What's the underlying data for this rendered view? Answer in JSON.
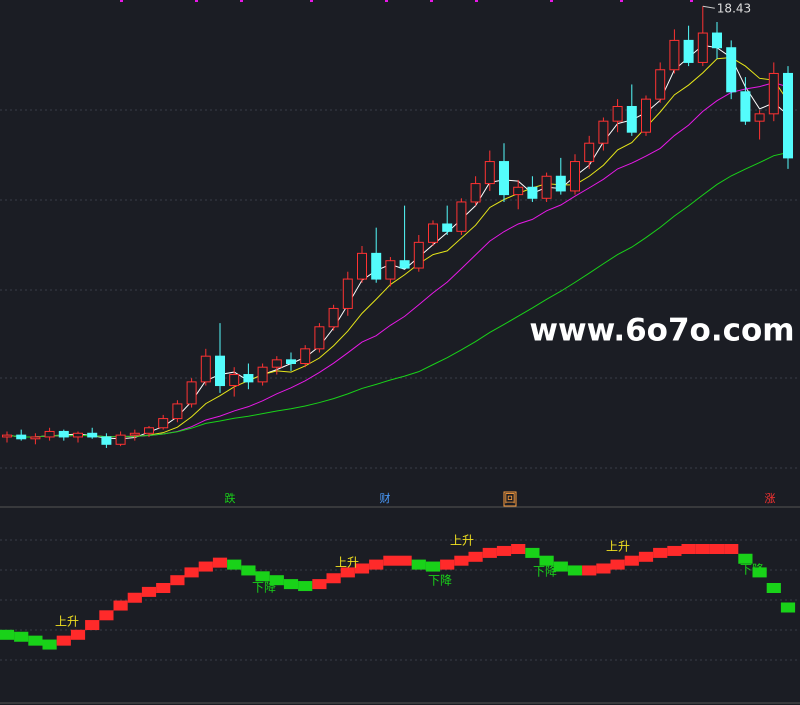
{
  "chart_data": {
    "type": "candlestick",
    "ylim": [
      5.8,
      18.6
    ],
    "up_color": "#ff3232",
    "down_color": "#54fcfc",
    "annotation": "18.43",
    "candles": [
      [
        6.7,
        6.85,
        6.55,
        6.75
      ],
      [
        6.75,
        6.9,
        6.6,
        6.65
      ],
      [
        6.65,
        6.8,
        6.5,
        6.7
      ],
      [
        6.7,
        6.95,
        6.6,
        6.85
      ],
      [
        6.85,
        6.9,
        6.6,
        6.7
      ],
      [
        6.7,
        6.85,
        6.55,
        6.8
      ],
      [
        6.8,
        6.95,
        6.65,
        6.7
      ],
      [
        6.7,
        6.8,
        6.4,
        6.5
      ],
      [
        6.5,
        6.85,
        6.45,
        6.75
      ],
      [
        6.75,
        6.9,
        6.6,
        6.8
      ],
      [
        6.8,
        7.0,
        6.7,
        6.95
      ],
      [
        6.95,
        7.3,
        6.9,
        7.2
      ],
      [
        7.2,
        7.7,
        7.1,
        7.6
      ],
      [
        7.6,
        8.3,
        7.5,
        8.2
      ],
      [
        8.2,
        9.1,
        8.1,
        8.9
      ],
      [
        8.9,
        9.8,
        7.9,
        8.1
      ],
      [
        8.1,
        8.6,
        7.8,
        8.4
      ],
      [
        8.4,
        8.7,
        8.0,
        8.2
      ],
      [
        8.2,
        8.7,
        8.1,
        8.6
      ],
      [
        8.6,
        8.9,
        8.4,
        8.8
      ],
      [
        8.8,
        9.0,
        8.5,
        8.7
      ],
      [
        8.7,
        9.2,
        8.6,
        9.1
      ],
      [
        9.1,
        9.8,
        9.0,
        9.7
      ],
      [
        9.7,
        10.3,
        9.6,
        10.2
      ],
      [
        10.2,
        11.2,
        10.0,
        11.0
      ],
      [
        11.0,
        11.9,
        10.9,
        11.7
      ],
      [
        11.7,
        12.4,
        10.9,
        11.0
      ],
      [
        11.0,
        11.6,
        10.8,
        11.5
      ],
      [
        11.5,
        13.0,
        11.3,
        11.3
      ],
      [
        11.3,
        12.2,
        11.2,
        12.0
      ],
      [
        12.0,
        12.6,
        11.9,
        12.5
      ],
      [
        12.5,
        13.0,
        12.2,
        12.3
      ],
      [
        12.3,
        13.2,
        12.2,
        13.1
      ],
      [
        13.1,
        13.8,
        13.0,
        13.6
      ],
      [
        13.6,
        14.5,
        13.4,
        14.2
      ],
      [
        14.2,
        14.7,
        13.1,
        13.3
      ],
      [
        13.3,
        13.7,
        12.9,
        13.5
      ],
      [
        13.5,
        13.8,
        13.1,
        13.2
      ],
      [
        13.2,
        13.9,
        13.1,
        13.8
      ],
      [
        13.8,
        14.3,
        13.3,
        13.4
      ],
      [
        13.4,
        14.4,
        13.3,
        14.2
      ],
      [
        14.2,
        14.9,
        14.0,
        14.7
      ],
      [
        14.7,
        15.4,
        14.5,
        15.3
      ],
      [
        15.3,
        15.9,
        15.0,
        15.7
      ],
      [
        15.7,
        16.3,
        14.9,
        15.0
      ],
      [
        15.0,
        16.0,
        14.9,
        15.9
      ],
      [
        15.9,
        16.9,
        15.8,
        16.7
      ],
      [
        16.7,
        17.8,
        16.6,
        17.5
      ],
      [
        17.5,
        17.9,
        16.8,
        16.9
      ],
      [
        16.9,
        18.43,
        16.8,
        17.7
      ],
      [
        17.7,
        18.0,
        17.0,
        17.3
      ],
      [
        17.3,
        17.5,
        15.9,
        16.1
      ],
      [
        16.1,
        16.5,
        15.2,
        15.3
      ],
      [
        15.3,
        15.6,
        14.8,
        15.5
      ],
      [
        15.5,
        16.9,
        15.3,
        16.6
      ],
      [
        16.6,
        16.8,
        14.0,
        14.3
      ]
    ],
    "ma_colors": [
      "#ffffff",
      "#e6e619",
      "#e619e6",
      "#19d219"
    ],
    "indicator": {
      "ylim": [
        0,
        100
      ],
      "rise_color": "#ff2a2a",
      "fall_color": "#19d219",
      "values": [
        36,
        35,
        33,
        31,
        33,
        36,
        41,
        46,
        51,
        55,
        58,
        60,
        64,
        68,
        71,
        73,
        72,
        69,
        66,
        64,
        62,
        61,
        62,
        65,
        68,
        70,
        72,
        74,
        74,
        72,
        71,
        72,
        74,
        76,
        78,
        79,
        80,
        78,
        74,
        71,
        69,
        69,
        70,
        72,
        74,
        76,
        78,
        79,
        80,
        80,
        80,
        80,
        75,
        68,
        60,
        50
      ]
    },
    "signals": [
      "上升",
      "下降",
      "上升",
      "下降",
      "上升",
      "下降",
      "上升",
      "下降"
    ],
    "markers": [
      "跌",
      "财",
      "回",
      "涨"
    ],
    "watermark": "www.6o7o.com"
  }
}
